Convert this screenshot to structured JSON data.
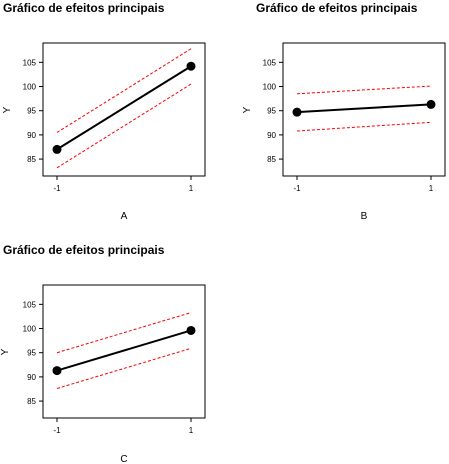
{
  "chart_data": [
    {
      "type": "line",
      "title": "Gráfico de efeitos principais",
      "xlabel": "A",
      "ylabel": "Y",
      "x_ticks": [
        "-1",
        "1"
      ],
      "y_ticks": [
        85,
        90,
        95,
        100,
        105
      ],
      "ylim": [
        81.5,
        109
      ],
      "series": [
        {
          "role": "mean",
          "color": "#000000",
          "x": [
            -1,
            1
          ],
          "y": [
            87,
            104.2
          ]
        },
        {
          "role": "upper",
          "color": "#ff0000",
          "x": [
            -1,
            1
          ],
          "y": [
            90.5,
            107.8
          ]
        },
        {
          "role": "lower",
          "color": "#ff0000",
          "x": [
            -1,
            1
          ],
          "y": [
            83.2,
            100.5
          ]
        }
      ]
    },
    {
      "type": "line",
      "title": "Gráfico de efeitos principais",
      "xlabel": "B",
      "ylabel": "Y",
      "x_ticks": [
        "-1",
        "1"
      ],
      "y_ticks": [
        85,
        90,
        95,
        100,
        105
      ],
      "ylim": [
        81.5,
        109
      ],
      "series": [
        {
          "role": "mean",
          "color": "#000000",
          "x": [
            -1,
            1
          ],
          "y": [
            94.7,
            96.3
          ]
        },
        {
          "role": "upper",
          "color": "#ff0000",
          "x": [
            -1,
            1
          ],
          "y": [
            98.5,
            100.1
          ]
        },
        {
          "role": "lower",
          "color": "#ff0000",
          "x": [
            -1,
            1
          ],
          "y": [
            90.8,
            92.6
          ]
        }
      ]
    },
    {
      "type": "line",
      "title": "Gráfico de efeitos principais",
      "xlabel": "C",
      "ylabel": "Y",
      "x_ticks": [
        "-1",
        "1"
      ],
      "y_ticks": [
        85,
        90,
        95,
        100,
        105
      ],
      "ylim": [
        81.5,
        109
      ],
      "series": [
        {
          "role": "mean",
          "color": "#000000",
          "x": [
            -1,
            1
          ],
          "y": [
            91.3,
            99.6
          ]
        },
        {
          "role": "upper",
          "color": "#ff0000",
          "x": [
            -1,
            1
          ],
          "y": [
            95.0,
            103.3
          ]
        },
        {
          "role": "lower",
          "color": "#ff0000",
          "x": [
            -1,
            1
          ],
          "y": [
            87.6,
            95.9
          ]
        }
      ]
    }
  ]
}
